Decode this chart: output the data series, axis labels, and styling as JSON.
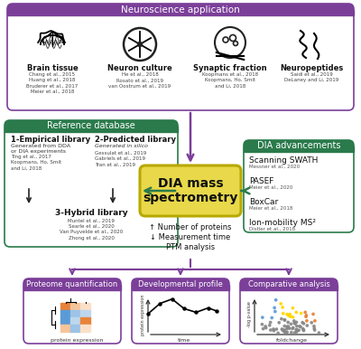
{
  "title": "Neuroscience application",
  "purple": "#7B3F99",
  "green": "#2A7A4B",
  "yellow_fill": "#E8D84A",
  "yellow_edge": "#B8A800",
  "white": "#FFFFFF",
  "dark_text": "#1A1A1A",
  "mid_text": "#333333",
  "light_text": "#555555",
  "ns_labels": [
    "Brain tissue",
    "Neuron culture",
    "Synaptic fraction",
    "Neuropeptides"
  ],
  "ns_refs": [
    "Chang et al., 2015\nHuang et al., 2018\nBruderer et al., 2017\nMeier et al., 2018",
    "He et al., 2018\nRosato et al., 2019\nvan Oostrum et al., 2019",
    "Koopmans et al., 2018\nKoopmans, Ho, Smit\nand Li, 2018",
    "Saidi et al., 2019\nDeLaney and Li, 2019"
  ],
  "ref_db_title": "Reference database",
  "emp_title": "1-Empirical library",
  "emp_sub": "Generated from DDA\nor DIA experiments",
  "emp_refs": "Ting et al., 2017\nKoopmans, Ho, Smit\nand Li, 2018",
  "pred_title": "2-Predicted library",
  "pred_sub": "Generated in silico",
  "pred_refs": "Gessulat et al., 2019\nGabriels et al., 2019\nTran et al., 2019",
  "hyb_title": "3-Hybrid library",
  "hyb_refs": "Muntel et al., 2019\nSearle et al., 2020\nVan Puyvelde et al., 2020\nZhong et al., 2020",
  "dia_adv_title": "DIA advancements",
  "dia_adv": [
    [
      "Scanning SWATH",
      "Messner et al., 2020"
    ],
    [
      "PASEF",
      "Meier et al., 2020"
    ],
    [
      "BoxCar",
      "Meier et al., 2018"
    ],
    [
      "Ion-mobility MS²",
      "Distler et al., 2018"
    ]
  ],
  "dia_title": "DIA mass\nspectrometry",
  "out_items": [
    "↑ Number of proteins",
    "↓ Measurement time",
    "PTM analysis"
  ],
  "bot_titles": [
    "Proteome quantification",
    "Developmental profile",
    "Comparative analysis"
  ],
  "prot_sub": "protein expression",
  "dev_xlabel": "time",
  "dev_ylabel": "protein expression",
  "comp_xlabel": "foldchange",
  "comp_ylabel": "-log p-value"
}
